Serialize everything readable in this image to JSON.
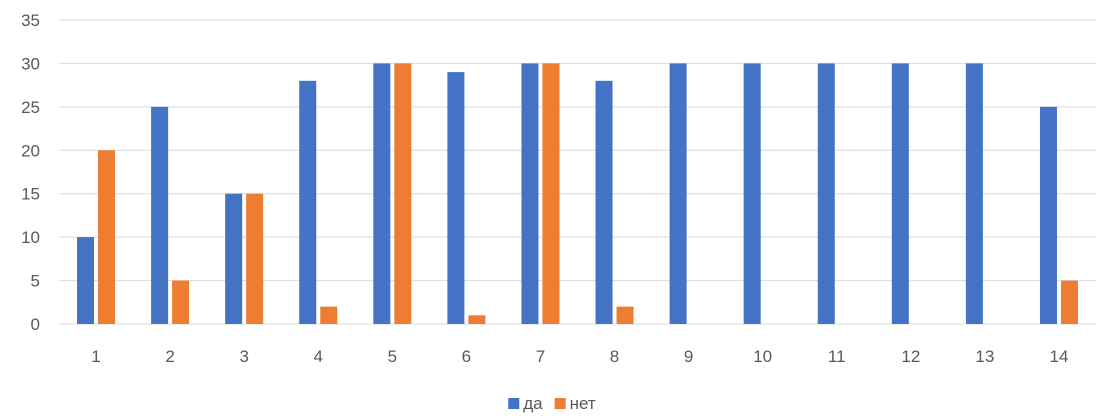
{
  "chart_data": {
    "type": "bar",
    "categories": [
      "1",
      "2",
      "3",
      "4",
      "5",
      "6",
      "7",
      "8",
      "9",
      "10",
      "11",
      "12",
      "13",
      "14"
    ],
    "series": [
      {
        "name": "да",
        "color": "#4472c4",
        "values": [
          10,
          25,
          15,
          28,
          30,
          29,
          30,
          28,
          30,
          30,
          30,
          30,
          30,
          25
        ]
      },
      {
        "name": "нет",
        "color": "#ed7d31",
        "values": [
          20,
          5,
          15,
          2,
          30,
          1,
          30,
          2,
          0,
          0,
          0,
          0,
          0,
          5
        ]
      }
    ],
    "ylim": [
      0,
      35
    ],
    "yticks": [
      "0",
      "5",
      "10",
      "15",
      "20",
      "25",
      "30",
      "35"
    ],
    "grid": true,
    "legend_position": "bottom"
  }
}
